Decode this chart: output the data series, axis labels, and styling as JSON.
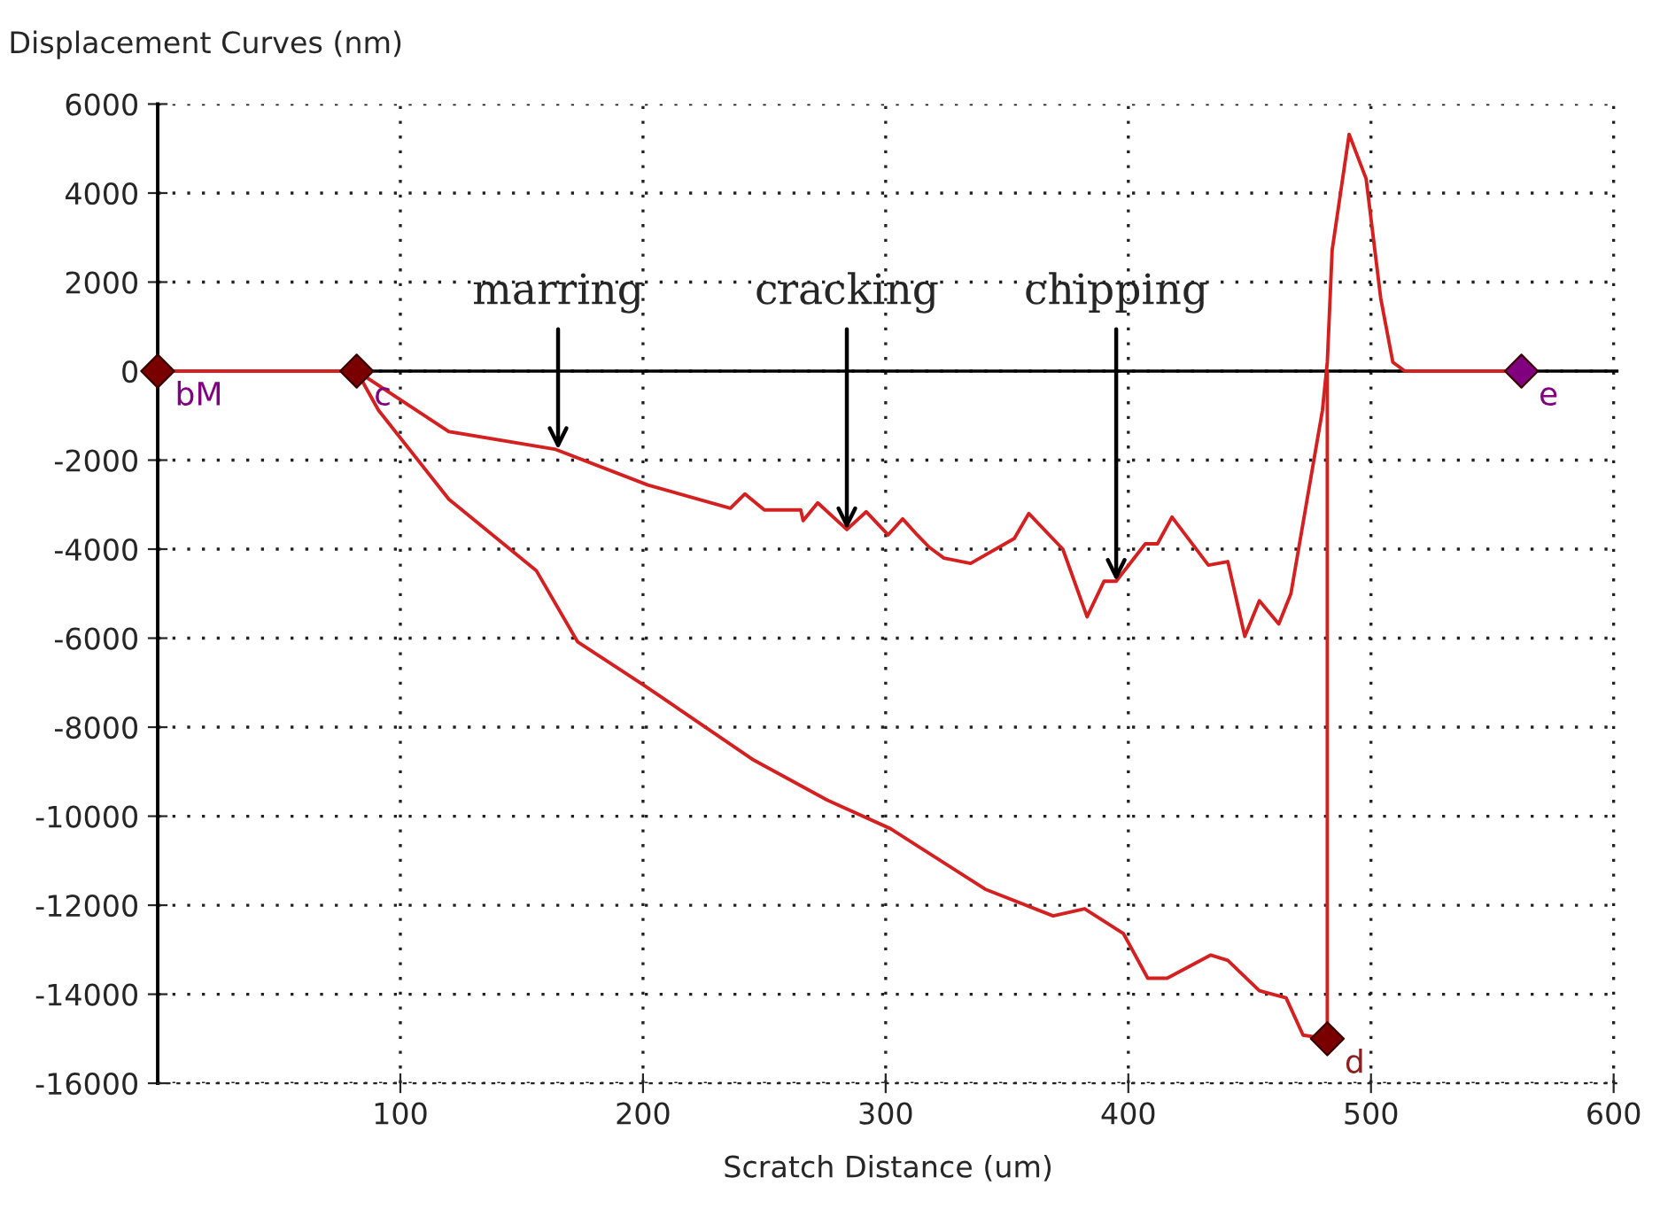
{
  "chart_data": {
    "type": "line",
    "ylabel": "Displacement Curves (nm)",
    "xlabel": "Scratch Distance (um)",
    "xlim": [
      0,
      602
    ],
    "ylim": [
      -16000,
      6000
    ],
    "xticks": [
      100,
      200,
      300,
      400,
      500,
      600
    ],
    "yticks": [
      -16000,
      -14000,
      -12000,
      -10000,
      -8000,
      -6000,
      -4000,
      -2000,
      0,
      2000,
      4000,
      6000
    ],
    "grid": true,
    "line_style": "solid",
    "ref_lines": [
      {
        "axis": "y",
        "value": 0,
        "color": "#000000"
      }
    ],
    "series": [
      {
        "color": "#d42020",
        "x": [
          0,
          82,
          91,
          120,
          156,
          173,
          201,
          245,
          276,
          302,
          341,
          369,
          382,
          398,
          408,
          416,
          434,
          441,
          454,
          465,
          472,
          482,
          482
        ],
        "values": [
          0,
          0,
          -880,
          -2880,
          -4480,
          -6080,
          -7080,
          -8720,
          -9640,
          -10280,
          -11640,
          -12240,
          -12080,
          -12640,
          -13640,
          -13640,
          -13120,
          -13240,
          -13920,
          -14080,
          -14920,
          -15000,
          0
        ]
      },
      {
        "color": "#d42020",
        "x": [
          82,
          120,
          164,
          202,
          236,
          242,
          250,
          265,
          266,
          272,
          284,
          292,
          301,
          307,
          313,
          318,
          324,
          335,
          353,
          359,
          373,
          383,
          390,
          395,
          407,
          412,
          418,
          433,
          441,
          448,
          454,
          462,
          467,
          480,
          482,
          484,
          491,
          498,
          504,
          509,
          514,
          562
        ],
        "values": [
          0,
          -1360,
          -1760,
          -2560,
          -3080,
          -2760,
          -3120,
          -3120,
          -3360,
          -2960,
          -3560,
          -3160,
          -3680,
          -3320,
          -3680,
          -3960,
          -4200,
          -4320,
          -3760,
          -3200,
          -4000,
          -5520,
          -4720,
          -4720,
          -3880,
          -3880,
          -3280,
          -4360,
          -4280,
          -5960,
          -5160,
          -5680,
          -5000,
          -880,
          200,
          2720,
          5320,
          4320,
          1640,
          200,
          0,
          0
        ]
      },
      {
        "type": "scatter",
        "marker": "diamond",
        "x": [
          0,
          82,
          482,
          562
        ],
        "values": [
          0,
          0,
          -15000,
          0
        ],
        "colors": [
          "#7a0000",
          "#7a0000",
          "#7a0000",
          "#800080"
        ]
      }
    ],
    "annotations": [
      {
        "text": "bM",
        "x": 0,
        "y": 0
      },
      {
        "text": "c",
        "x": 82,
        "y": 0
      },
      {
        "text": "d",
        "x": 482,
        "y": -15000
      },
      {
        "text": "e",
        "x": 562,
        "y": 0
      },
      {
        "text": "marring",
        "x": 165,
        "y": -1760
      },
      {
        "text": "cracking",
        "x": 284,
        "y": -3560
      },
      {
        "text": "chipping",
        "x": 395,
        "y": -4720
      }
    ]
  }
}
